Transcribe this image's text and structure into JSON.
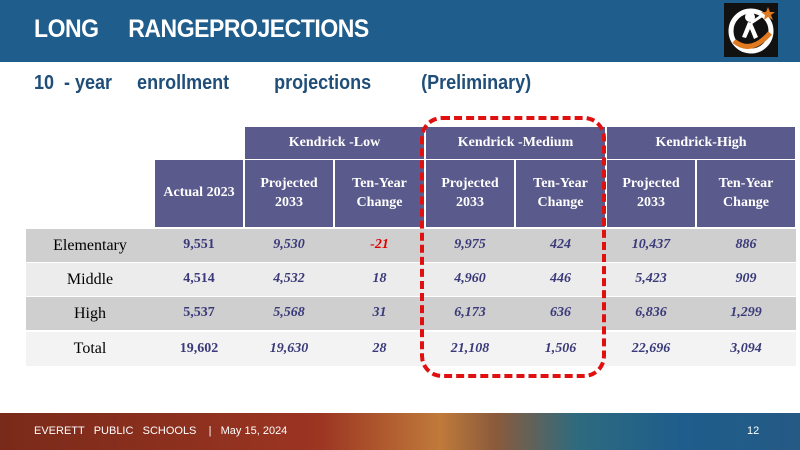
{
  "header": {
    "title": "LONG     RANGEPROJECTIONS"
  },
  "subtitle": "10  - year     enrollment         projections          (Preliminary)",
  "table": {
    "groups": [
      "Kendrick -Low",
      "Kendrick -Medium",
      "Kendrick-High"
    ],
    "actual_header": "Actual  2023",
    "sub_headers": [
      "Projected 2033",
      "Ten-Year Change",
      "Projected 2033",
      "Ten-Year Change",
      "Projected 2033",
      "Ten-Year Change"
    ],
    "rows": [
      {
        "label": "Elementary",
        "values": [
          "9,551",
          "9,530",
          "-21",
          "9,975",
          "424",
          "10,437",
          "886"
        ]
      },
      {
        "label": "Middle",
        "values": [
          "4,514",
          "4,532",
          "18",
          "4,960",
          "446",
          "5,423",
          "909"
        ]
      },
      {
        "label": "High",
        "values": [
          "5,537",
          "5,568",
          "31",
          "6,173",
          "636",
          "6,836",
          "1,299"
        ]
      },
      {
        "label": "Total",
        "values": [
          "19,602",
          "19,630",
          "28",
          "21,108",
          "1,506",
          "22,696",
          "3,094"
        ]
      }
    ],
    "highlight_color": "#e01010"
  },
  "footer": {
    "text": "EVERETT   PUBLIC   SCHOOLS    |   May 15, 2024",
    "page": "12"
  },
  "colors": {
    "header_bg": "#1f5d8c",
    "table_header_bg": "#5a5a8c",
    "negative": "#e00000"
  }
}
